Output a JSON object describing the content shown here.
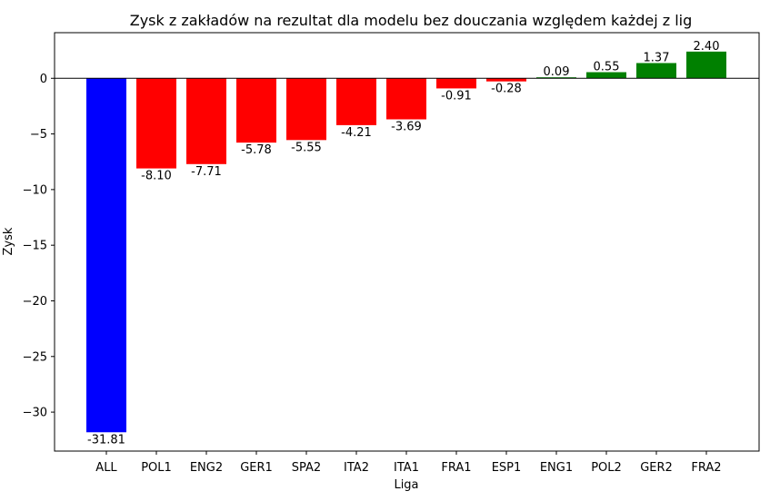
{
  "chart_data": {
    "type": "bar",
    "title": "Zysk z zakładów na rezultat dla modelu bez douczania względem każdej z lig",
    "xlabel": "Liga",
    "ylabel": "Zysk",
    "categories": [
      "ALL",
      "POL1",
      "ENG2",
      "GER1",
      "SPA2",
      "ITA2",
      "ITA1",
      "FRA1",
      "ESP1",
      "ENG1",
      "POL2",
      "GER2",
      "FRA2"
    ],
    "values": [
      -31.81,
      -8.1,
      -7.71,
      -5.78,
      -5.55,
      -4.21,
      -3.69,
      -0.91,
      -0.28,
      0.09,
      0.55,
      1.37,
      2.4
    ],
    "value_labels": [
      "-31.81",
      "-8.10",
      "-7.71",
      "-5.78",
      "-5.55",
      "-4.21",
      "-3.69",
      "-0.91",
      "-0.28",
      "0.09",
      "0.55",
      "1.37",
      "2.40"
    ],
    "bar_colors": [
      "#0000ff",
      "#ff0000",
      "#ff0000",
      "#ff0000",
      "#ff0000",
      "#ff0000",
      "#ff0000",
      "#ff0000",
      "#ff0000",
      "#008000",
      "#008000",
      "#008000",
      "#008000"
    ],
    "ylim": [
      -33.5,
      4.1
    ],
    "yticks": [
      0,
      -5,
      -10,
      -15,
      -20,
      -25,
      -30
    ],
    "ytick_labels": [
      "0",
      "−5",
      "−10",
      "−15",
      "−20",
      "−25",
      "−30"
    ],
    "zero_line": true,
    "grid": false
  }
}
